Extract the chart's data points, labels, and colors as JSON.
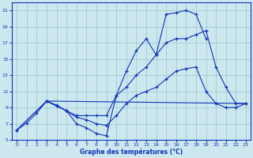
{
  "xlabel": "Graphe des températures (°C)",
  "bg_color": "#cce8ee",
  "grid_color": "#99c4cc",
  "line_color": "#1133bb",
  "xlim": [
    -0.5,
    23.5
  ],
  "ylim": [
    5,
    22
  ],
  "xticks": [
    0,
    1,
    2,
    3,
    4,
    5,
    6,
    7,
    8,
    9,
    10,
    11,
    12,
    13,
    14,
    15,
    16,
    17,
    18,
    19,
    20,
    21,
    22,
    23
  ],
  "yticks": [
    5,
    7,
    9,
    11,
    13,
    15,
    17,
    19,
    21
  ],
  "curve1_x": [
    0,
    1,
    2,
    3,
    4,
    5,
    6,
    7,
    8,
    9,
    10,
    11,
    12,
    13,
    14,
    15,
    16,
    17,
    18,
    19
  ],
  "curve1_y": [
    6.2,
    7.1,
    8.3,
    9.8,
    9.2,
    8.6,
    7.0,
    6.5,
    5.8,
    5.5,
    10.5,
    13.5,
    16.0,
    17.5,
    15.5,
    20.5,
    20.7,
    21.0,
    20.5,
    17.5
  ],
  "curve2_x": [
    3,
    4,
    5,
    6,
    7,
    8,
    9,
    10,
    11,
    12,
    13,
    14,
    15,
    16,
    17,
    18,
    19,
    20,
    21,
    22,
    23
  ],
  "curve2_y": [
    9.8,
    9.2,
    8.6,
    8.0,
    8.0,
    8.0,
    8.0,
    10.5,
    11.5,
    13.0,
    14.0,
    15.5,
    17.0,
    17.5,
    17.5,
    18.0,
    18.5,
    14.0,
    11.5,
    9.5,
    9.5
  ],
  "curve3_x": [
    0,
    3,
    23
  ],
  "curve3_y": [
    6.2,
    9.8,
    9.5
  ],
  "curve4_x": [
    0,
    3,
    4,
    5,
    6,
    7,
    8,
    9,
    10,
    11,
    12,
    13,
    14,
    15,
    16,
    17,
    18,
    19,
    20,
    21,
    22,
    23
  ],
  "curve4_y": [
    6.2,
    9.8,
    9.3,
    8.6,
    7.8,
    7.5,
    7.0,
    6.8,
    8.0,
    9.5,
    10.5,
    11.0,
    11.5,
    12.5,
    13.5,
    13.8,
    14.0,
    11.0,
    9.5,
    9.0,
    9.0,
    9.5
  ]
}
